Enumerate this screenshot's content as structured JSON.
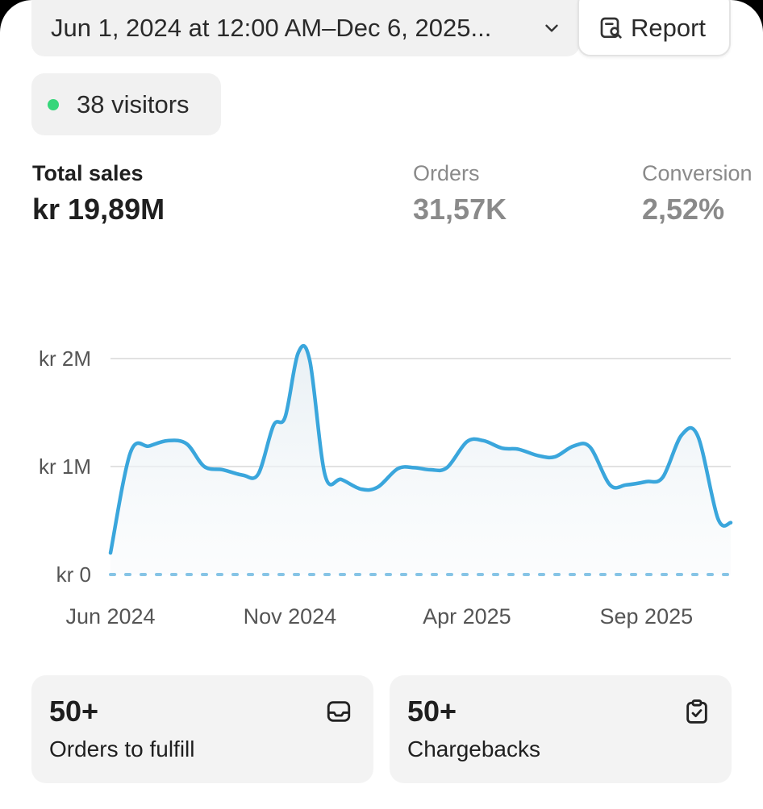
{
  "header": {
    "date_range": "Jun 1, 2024 at 12:00 AM–Dec 6, 2025...",
    "report_label": "Report"
  },
  "visitors": {
    "label": "38 visitors",
    "dot_color": "#36d67a"
  },
  "metrics": [
    {
      "label": "Total sales",
      "value": "kr 19,89M"
    },
    {
      "label": "Orders",
      "value": "31,57K"
    },
    {
      "label": "Conversion",
      "value": "2,52%"
    }
  ],
  "chart_data": {
    "type": "line",
    "line_color": "#3aa6dc",
    "y_ticks": [
      "kr 2M",
      "kr 1M",
      "kr 0"
    ],
    "x_tick_labels": [
      "Jun 2024",
      "Nov 2024",
      "Apr 2025",
      "Sep 2025"
    ],
    "ylim": [
      0,
      2000000
    ],
    "grid": true,
    "series": [
      {
        "points": [
          {
            "x": "2024-06-01",
            "y": 200000
          },
          {
            "x": "2024-06-18",
            "y": 1130000
          },
          {
            "x": "2024-07-04",
            "y": 1190000
          },
          {
            "x": "2024-07-20",
            "y": 1240000
          },
          {
            "x": "2024-08-05",
            "y": 1210000
          },
          {
            "x": "2024-08-20",
            "y": 1000000
          },
          {
            "x": "2024-09-05",
            "y": 970000
          },
          {
            "x": "2024-09-22",
            "y": 920000
          },
          {
            "x": "2024-10-05",
            "y": 930000
          },
          {
            "x": "2024-10-18",
            "y": 1380000
          },
          {
            "x": "2024-10-28",
            "y": 1460000
          },
          {
            "x": "2024-11-08",
            "y": 2050000
          },
          {
            "x": "2024-11-18",
            "y": 1980000
          },
          {
            "x": "2024-12-01",
            "y": 920000
          },
          {
            "x": "2024-12-15",
            "y": 880000
          },
          {
            "x": "2025-01-01",
            "y": 790000
          },
          {
            "x": "2025-01-15",
            "y": 810000
          },
          {
            "x": "2025-02-01",
            "y": 980000
          },
          {
            "x": "2025-02-15",
            "y": 990000
          },
          {
            "x": "2025-03-01",
            "y": 970000
          },
          {
            "x": "2025-03-15",
            "y": 990000
          },
          {
            "x": "2025-04-01",
            "y": 1230000
          },
          {
            "x": "2025-04-15",
            "y": 1240000
          },
          {
            "x": "2025-05-01",
            "y": 1170000
          },
          {
            "x": "2025-05-15",
            "y": 1160000
          },
          {
            "x": "2025-06-01",
            "y": 1100000
          },
          {
            "x": "2025-06-15",
            "y": 1090000
          },
          {
            "x": "2025-07-01",
            "y": 1190000
          },
          {
            "x": "2025-07-15",
            "y": 1180000
          },
          {
            "x": "2025-08-01",
            "y": 830000
          },
          {
            "x": "2025-08-15",
            "y": 830000
          },
          {
            "x": "2025-09-01",
            "y": 860000
          },
          {
            "x": "2025-09-15",
            "y": 900000
          },
          {
            "x": "2025-10-01",
            "y": 1290000
          },
          {
            "x": "2025-10-15",
            "y": 1280000
          },
          {
            "x": "2025-11-01",
            "y": 520000
          },
          {
            "x": "2025-11-12",
            "y": 480000
          }
        ]
      },
      {
        "style": "dotted",
        "color": "#86c4e6",
        "points": [
          {
            "x": "2024-06-01",
            "y": 0
          },
          {
            "x": "2025-11-12",
            "y": 0
          }
        ]
      }
    ]
  },
  "cards": [
    {
      "count": "50+",
      "label": "Orders to fulfill",
      "icon": "inbox-icon"
    },
    {
      "count": "50+",
      "label": "Chargebacks",
      "icon": "clipboard-check-icon"
    }
  ]
}
